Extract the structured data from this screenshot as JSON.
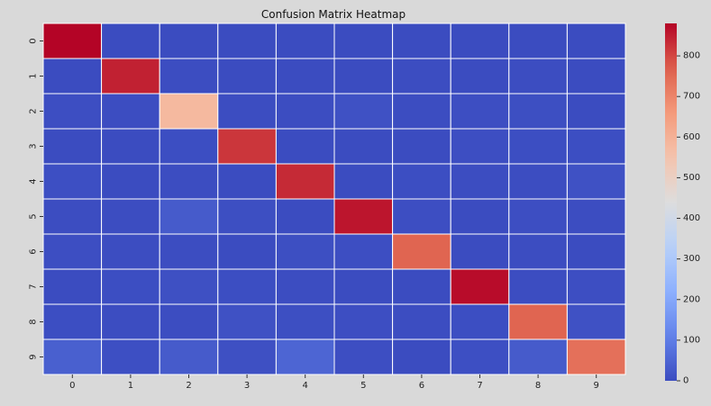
{
  "chart_data": {
    "type": "heatmap",
    "title": "Confusion Matrix Heatmap",
    "xlabel": "",
    "ylabel": "",
    "x_categories": [
      "0",
      "1",
      "2",
      "3",
      "4",
      "5",
      "6",
      "7",
      "8",
      "9"
    ],
    "y_categories": [
      "0",
      "1",
      "2",
      "3",
      "4",
      "5",
      "6",
      "7",
      "8",
      "9"
    ],
    "values": [
      [
        975,
        0,
        1,
        0,
        0,
        1,
        1,
        1,
        1,
        0
      ],
      [
        0,
        845,
        3,
        1,
        0,
        1,
        2,
        1,
        2,
        0
      ],
      [
        5,
        3,
        580,
        3,
        2,
        10,
        3,
        5,
        6,
        1
      ],
      [
        1,
        0,
        4,
        820,
        0,
        1,
        0,
        5,
        4,
        4
      ],
      [
        7,
        1,
        2,
        0,
        835,
        0,
        4,
        2,
        2,
        10
      ],
      [
        3,
        2,
        30,
        6,
        1,
        860,
        5,
        1,
        5,
        2
      ],
      [
        5,
        3,
        2,
        0,
        6,
        5,
        760,
        0,
        2,
        0
      ],
      [
        1,
        4,
        8,
        4,
        2,
        0,
        0,
        870,
        3,
        5
      ],
      [
        4,
        2,
        3,
        10,
        6,
        5,
        3,
        4,
        760,
        10
      ],
      [
        40,
        7,
        30,
        8,
        50,
        5,
        1,
        7,
        30,
        740
      ]
    ],
    "colormap": "coolwarm",
    "colorbar": {
      "range": [
        0,
        880
      ],
      "ticks": [
        "0",
        "100",
        "200",
        "300",
        "400",
        "500",
        "600",
        "700",
        "800"
      ],
      "tick_values": [
        0,
        100,
        200,
        300,
        400,
        500,
        600,
        700,
        800
      ]
    },
    "grid_lines": true,
    "grid_line_color": "#ffffff",
    "background_color": "#d9d9d9"
  }
}
